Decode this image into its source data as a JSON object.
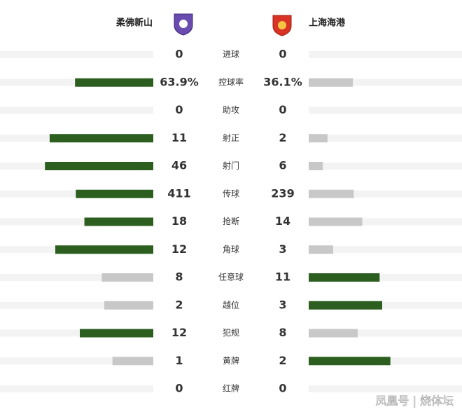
{
  "chart_data": {
    "type": "butterfly",
    "categories": [
      "进球",
      "控球率",
      "助攻",
      "射正",
      "射门",
      "传球",
      "抢断",
      "角球",
      "任意球",
      "越位",
      "犯规",
      "黄牌",
      "红牌"
    ],
    "series": [
      {
        "name": "柔佛新山",
        "values": [
          0,
          63.9,
          0,
          11,
          46,
          411,
          18,
          12,
          8,
          2,
          12,
          1,
          0
        ],
        "value_labels": [
          "0",
          "63.9%",
          "0",
          "11",
          "46",
          "411",
          "18",
          "12",
          "8",
          "2",
          "12",
          "1",
          "0"
        ]
      },
      {
        "name": "上海海港",
        "values": [
          0,
          36.1,
          0,
          2,
          6,
          239,
          14,
          3,
          11,
          3,
          8,
          2,
          0
        ],
        "value_labels": [
          "0",
          "36.1%",
          "0",
          "2",
          "6",
          "239",
          "14",
          "3",
          "11",
          "3",
          "8",
          "2",
          "0"
        ]
      }
    ],
    "lead_color": "#2b5e1f",
    "trail_color": "#c8c8c8",
    "track_color": "#f3f3f3",
    "source": "凤凰号 | 烧体坛"
  }
}
